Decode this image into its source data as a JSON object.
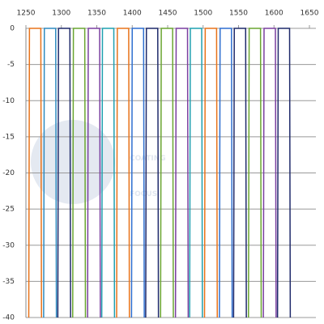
{
  "chart_data": {
    "type": "line",
    "watermark": [
      "COATING",
      "FOCUS"
    ],
    "xlim": [
      1250,
      1650
    ],
    "xticks": [
      1250,
      1300,
      1350,
      1400,
      1450,
      1500,
      1550,
      1600,
      1650
    ],
    "ylim": [
      -40,
      0
    ],
    "yticks": [
      0,
      -5,
      -10,
      -15,
      -20,
      -25,
      -30,
      -35,
      -40
    ],
    "grid": true,
    "series": [
      {
        "color": "#e8731a",
        "x": [
          1254,
          1255,
          1271,
          1272
        ],
        "values": [
          -40,
          0,
          0,
          -40
        ]
      },
      {
        "color": "#2e8bc0",
        "x": [
          1275,
          1276,
          1292,
          1293
        ],
        "values": [
          -40,
          0,
          0,
          -40
        ]
      },
      {
        "color": "#1f2a6b",
        "x": [
          1295,
          1296,
          1312,
          1313
        ],
        "values": [
          -40,
          0,
          0,
          -40
        ]
      },
      {
        "color": "#6aa530",
        "x": [
          1316,
          1317,
          1333,
          1334
        ],
        "values": [
          -40,
          0,
          0,
          -40
        ]
      },
      {
        "color": "#7a3fa0",
        "x": [
          1337,
          1338,
          1354,
          1355
        ],
        "values": [
          -40,
          0,
          0,
          -40
        ]
      },
      {
        "color": "#1fa0b0",
        "x": [
          1357,
          1358,
          1374,
          1375
        ],
        "values": [
          -40,
          0,
          0,
          -40
        ]
      },
      {
        "color": "#e8731a",
        "x": [
          1378,
          1379,
          1395,
          1396
        ],
        "values": [
          -40,
          0,
          0,
          -40
        ]
      },
      {
        "color": "#2e6fd0",
        "x": [
          1399,
          1400,
          1416,
          1417
        ],
        "values": [
          -40,
          0,
          0,
          -40
        ]
      },
      {
        "color": "#1f2a6b",
        "x": [
          1419,
          1420,
          1436,
          1437
        ],
        "values": [
          -40,
          0,
          0,
          -40
        ]
      },
      {
        "color": "#6aa530",
        "x": [
          1440,
          1441,
          1457,
          1458
        ],
        "values": [
          -40,
          0,
          0,
          -40
        ]
      },
      {
        "color": "#7a3fa0",
        "x": [
          1461,
          1462,
          1478,
          1479
        ],
        "values": [
          -40,
          0,
          0,
          -40
        ]
      },
      {
        "color": "#1fa0b0",
        "x": [
          1481,
          1482,
          1498,
          1499
        ],
        "values": [
          -40,
          0,
          0,
          -40
        ]
      },
      {
        "color": "#e8731a",
        "x": [
          1502,
          1503,
          1519,
          1520
        ],
        "values": [
          -40,
          0,
          0,
          -40
        ]
      },
      {
        "color": "#2e6fd0",
        "x": [
          1523,
          1524,
          1540,
          1541
        ],
        "values": [
          -40,
          0,
          0,
          -40
        ]
      },
      {
        "color": "#1f2a6b",
        "x": [
          1543,
          1544,
          1560,
          1561
        ],
        "values": [
          -40,
          0,
          0,
          -40
        ]
      },
      {
        "color": "#6aa530",
        "x": [
          1564,
          1565,
          1581,
          1582
        ],
        "values": [
          -40,
          0,
          0,
          -40
        ]
      },
      {
        "color": "#7a3fa0",
        "x": [
          1585,
          1586,
          1602,
          1603
        ],
        "values": [
          -40,
          0,
          0,
          -40
        ]
      },
      {
        "color": "#1f2a6b",
        "x": [
          1605,
          1606,
          1622,
          1623
        ],
        "values": [
          -40,
          0,
          0,
          -40
        ]
      }
    ]
  }
}
